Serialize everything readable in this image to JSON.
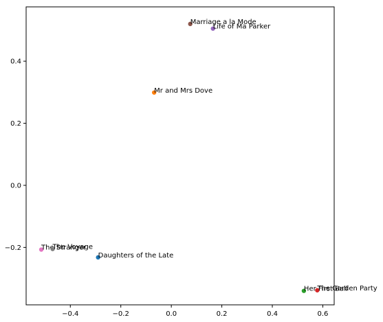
{
  "chart_data": {
    "type": "scatter",
    "title": "",
    "xlabel": "",
    "ylabel": "",
    "xlim": [
      -0.575,
      0.645
    ],
    "ylim": [
      -0.385,
      0.575
    ],
    "grid": false,
    "legend": "none",
    "xticks": [
      -0.4,
      -0.2,
      0.0,
      0.2,
      0.4,
      0.6
    ],
    "xtick_labels": [
      "−0.4",
      "−0.2",
      "0.0",
      "0.2",
      "0.4",
      "0.6"
    ],
    "yticks": [
      -0.2,
      0.0,
      0.2,
      0.4
    ],
    "ytick_labels": [
      "−0.2",
      "0.0",
      "0.2",
      "0.4"
    ],
    "points": [
      {
        "label": "Daughters of the Late",
        "x": -0.29,
        "y": -0.232,
        "color": "#1f77b4"
      },
      {
        "label": "Mr and Mrs Dove",
        "x": -0.068,
        "y": 0.299,
        "color": "#ff7f0e"
      },
      {
        "label": "Her First Ball",
        "x": 0.525,
        "y": -0.34,
        "color": "#2ca02c"
      },
      {
        "label": "The Garden Party",
        "x": 0.578,
        "y": -0.338,
        "color": "#d62728"
      },
      {
        "label": "Life of Ma Parker",
        "x": 0.165,
        "y": 0.505,
        "color": "#9467bd"
      },
      {
        "label": "Marriage a la Mode",
        "x": 0.075,
        "y": 0.52,
        "color": "#8c564b"
      },
      {
        "label": "The Stranger",
        "x": -0.515,
        "y": -0.207,
        "color": "#e377c2"
      },
      {
        "label": "The Voyage",
        "x": -0.47,
        "y": -0.205,
        "color": "#7f7f7f"
      }
    ]
  }
}
